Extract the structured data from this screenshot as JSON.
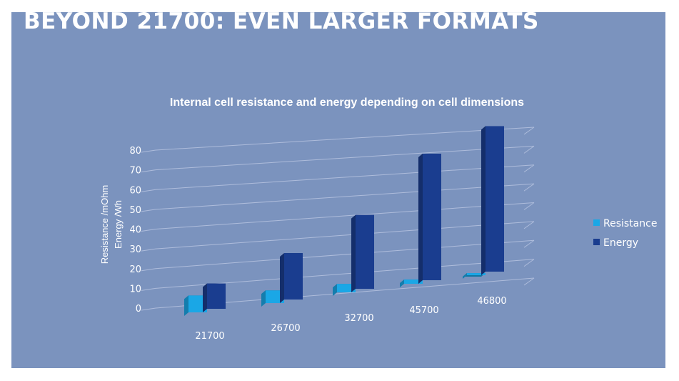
{
  "slide": {
    "title": "BEYOND 21700: EVEN LARGER FORMATS",
    "background": "#7b93be"
  },
  "chart_data": {
    "type": "bar",
    "title": "Internal cell resistance and energy depending on cell dimensions",
    "ylabel_lines": [
      "Resistance /mOhm",
      "Energy /Wh"
    ],
    "xlabel": "",
    "categories": [
      "21700",
      "26700",
      "32700",
      "45700",
      "46800"
    ],
    "y_ticks": [
      0,
      10,
      20,
      30,
      40,
      50,
      60,
      70,
      80
    ],
    "ylim": [
      0,
      80
    ],
    "grid": true,
    "legend_position": "right",
    "series": [
      {
        "name": "Resistance",
        "color": "#1aa7e6",
        "values": [
          8,
          6,
          4,
          2,
          1
        ]
      },
      {
        "name": "Energy",
        "color": "#1a3d8f",
        "values": [
          12,
          22,
          35,
          60,
          69
        ]
      }
    ]
  }
}
